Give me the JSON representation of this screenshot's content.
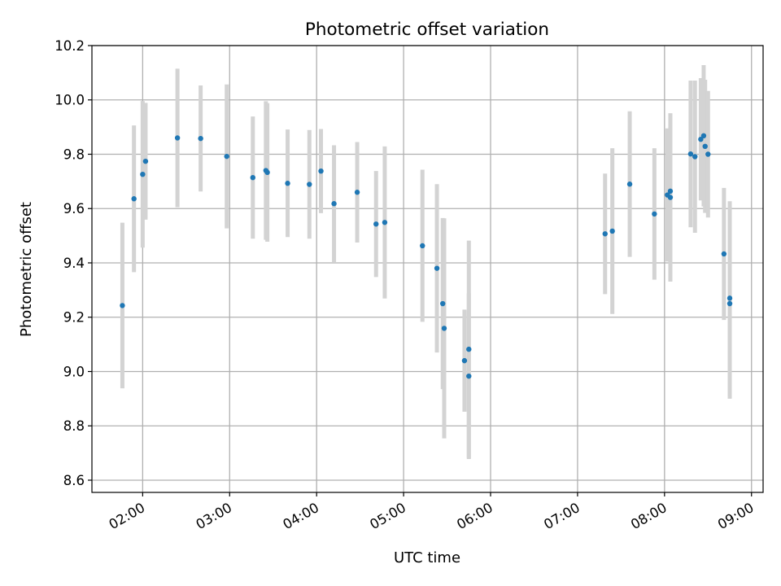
{
  "chart_data": {
    "type": "scatter",
    "title": "Photometric offset variation",
    "xlabel": "UTC time",
    "ylabel": "Photometric offset",
    "x_format": "HH:MM",
    "xlim": [
      "01:25",
      "09:08"
    ],
    "ylim": [
      8.555,
      10.2
    ],
    "xticks": [
      "02:00",
      "03:00",
      "04:00",
      "05:00",
      "06:00",
      "07:00",
      "08:00",
      "09:00"
    ],
    "yticks": [
      8.6,
      8.8,
      9.0,
      9.2,
      9.4,
      9.6,
      9.8,
      10.0,
      10.2
    ],
    "grid": true,
    "legend": "none",
    "marker_color": "#1f77b4",
    "errorbar_color": "#d3d3d3",
    "series": [
      {
        "points": [
          {
            "x": "01:46",
            "y": 9.243,
            "yerr": 0.305
          },
          {
            "x": "01:54",
            "y": 9.636,
            "yerr": 0.27
          },
          {
            "x": "02:00",
            "y": 9.726,
            "yerr": 0.27
          },
          {
            "x": "02:02",
            "y": 9.774,
            "yerr": 0.215
          },
          {
            "x": "02:24",
            "y": 9.86,
            "yerr": 0.255
          },
          {
            "x": "02:40",
            "y": 9.858,
            "yerr": 0.195
          },
          {
            "x": "02:58",
            "y": 9.792,
            "yerr": 0.265
          },
          {
            "x": "03:16",
            "y": 9.714,
            "yerr": 0.225
          },
          {
            "x": "03:25",
            "y": 9.74,
            "yerr": 0.255
          },
          {
            "x": "03:26",
            "y": 9.733,
            "yerr": 0.255
          },
          {
            "x": "03:40",
            "y": 9.693,
            "yerr": 0.198
          },
          {
            "x": "03:55",
            "y": 9.689,
            "yerr": 0.2
          },
          {
            "x": "04:03",
            "y": 9.738,
            "yerr": 0.155
          },
          {
            "x": "04:12",
            "y": 9.618,
            "yerr": 0.215
          },
          {
            "x": "04:28",
            "y": 9.66,
            "yerr": 0.185
          },
          {
            "x": "04:41",
            "y": 9.543,
            "yerr": 0.195
          },
          {
            "x": "04:47",
            "y": 9.549,
            "yerr": 0.28
          },
          {
            "x": "05:13",
            "y": 9.463,
            "yerr": 0.28
          },
          {
            "x": "05:23",
            "y": 9.38,
            "yerr": 0.31
          },
          {
            "x": "05:27",
            "y": 9.25,
            "yerr": 0.315
          },
          {
            "x": "05:28",
            "y": 9.159,
            "yerr": 0.405
          },
          {
            "x": "05:42",
            "y": 9.04,
            "yerr": 0.188
          },
          {
            "x": "05:45",
            "y": 9.082,
            "yerr": 0.4
          },
          {
            "x": "05:45",
            "y": 8.983,
            "yerr": 0.305
          },
          {
            "x": "07:19",
            "y": 9.507,
            "yerr": 0.222
          },
          {
            "x": "07:24",
            "y": 9.517,
            "yerr": 0.305
          },
          {
            "x": "07:36",
            "y": 9.69,
            "yerr": 0.268
          },
          {
            "x": "07:53",
            "y": 9.58,
            "yerr": 0.242
          },
          {
            "x": "08:02",
            "y": 9.65,
            "yerr": 0.245
          },
          {
            "x": "08:04",
            "y": 9.664,
            "yerr": 0.195
          },
          {
            "x": "08:04",
            "y": 9.641,
            "yerr": 0.31
          },
          {
            "x": "08:18",
            "y": 9.801,
            "yerr": 0.27
          },
          {
            "x": "08:21",
            "y": 9.791,
            "yerr": 0.28
          },
          {
            "x": "08:25",
            "y": 9.855,
            "yerr": 0.225
          },
          {
            "x": "08:27",
            "y": 9.868,
            "yerr": 0.26
          },
          {
            "x": "08:28",
            "y": 9.829,
            "yerr": 0.245
          },
          {
            "x": "08:30",
            "y": 9.8,
            "yerr": 0.233
          },
          {
            "x": "08:41",
            "y": 9.433,
            "yerr": 0.243
          },
          {
            "x": "08:45",
            "y": 9.27,
            "yerr": 0.357
          },
          {
            "x": "08:45",
            "y": 9.25,
            "yerr": 0.35
          }
        ]
      }
    ]
  }
}
